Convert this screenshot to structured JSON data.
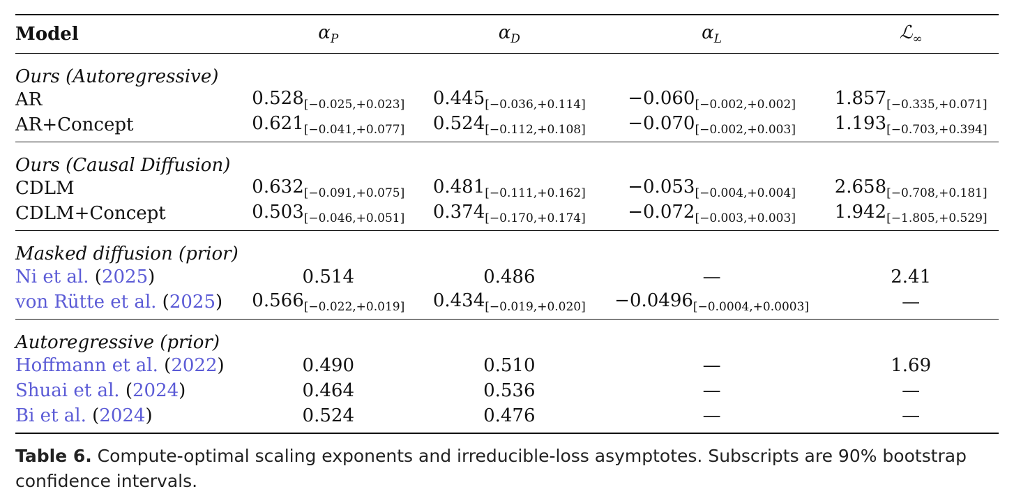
{
  "header": {
    "model": "Model",
    "cols": [
      {
        "base": "α",
        "sub": "P"
      },
      {
        "base": "α",
        "sub": "D"
      },
      {
        "base": "α",
        "sub": "L"
      },
      {
        "base": "ℒ",
        "sub": "∞"
      }
    ]
  },
  "groups": [
    {
      "title": "Ours (Autoregressive)",
      "rows": [
        {
          "name": "AR",
          "cells": [
            {
              "v": "0.528",
              "ci": "[−0.025,+0.023]"
            },
            {
              "v": "0.445",
              "ci": "[−0.036,+0.114]"
            },
            {
              "v": "−0.060",
              "ci": "[−0.002,+0.002]"
            },
            {
              "v": "1.857",
              "ci": "[−0.335,+0.071]"
            }
          ]
        },
        {
          "name": "AR+Concept",
          "cells": [
            {
              "v": "0.621",
              "ci": "[−0.041,+0.077]"
            },
            {
              "v": "0.524",
              "ci": "[−0.112,+0.108]"
            },
            {
              "v": "−0.070",
              "ci": "[−0.002,+0.003]"
            },
            {
              "v": "1.193",
              "ci": "[−0.703,+0.394]"
            }
          ]
        }
      ]
    },
    {
      "title": "Ours (Causal Diffusion)",
      "rows": [
        {
          "name": "CDLM",
          "cells": [
            {
              "v": "0.632",
              "ci": "[−0.091,+0.075]"
            },
            {
              "v": "0.481",
              "ci": "[−0.111,+0.162]"
            },
            {
              "v": "−0.053",
              "ci": "[−0.004,+0.004]"
            },
            {
              "v": "2.658",
              "ci": "[−0.708,+0.181]"
            }
          ]
        },
        {
          "name": "CDLM+Concept",
          "cells": [
            {
              "v": "0.503",
              "ci": "[−0.046,+0.051]"
            },
            {
              "v": "0.374",
              "ci": "[−0.170,+0.174]"
            },
            {
              "v": "−0.072",
              "ci": "[−0.003,+0.003]"
            },
            {
              "v": "1.942",
              "ci": "[−1.805,+0.529]"
            }
          ]
        }
      ]
    },
    {
      "title": "Masked diffusion (prior)",
      "rows": [
        {
          "name": "Ni et al.",
          "year": "2025",
          "cells": [
            {
              "v": "0.514",
              "ci": ""
            },
            {
              "v": "0.486",
              "ci": ""
            },
            {
              "v": "—",
              "ci": ""
            },
            {
              "v": "2.41",
              "ci": ""
            }
          ]
        },
        {
          "name": "von Rütte et al.",
          "year": "2025",
          "cells": [
            {
              "v": "0.566",
              "ci": "[−0.022,+0.019]"
            },
            {
              "v": "0.434",
              "ci": "[−0.019,+0.020]"
            },
            {
              "v": "−0.0496",
              "ci": "[−0.0004,+0.0003]"
            },
            {
              "v": "—",
              "ci": ""
            }
          ]
        }
      ]
    },
    {
      "title": "Autoregressive (prior)",
      "rows": [
        {
          "name": "Hoffmann et al.",
          "year": "2022",
          "cells": [
            {
              "v": "0.490",
              "ci": ""
            },
            {
              "v": "0.510",
              "ci": ""
            },
            {
              "v": "—",
              "ci": ""
            },
            {
              "v": "1.69",
              "ci": ""
            }
          ]
        },
        {
          "name": "Shuai et al.",
          "year": "2024",
          "cells": [
            {
              "v": "0.464",
              "ci": ""
            },
            {
              "v": "0.536",
              "ci": ""
            },
            {
              "v": "—",
              "ci": ""
            },
            {
              "v": "—",
              "ci": ""
            }
          ]
        },
        {
          "name": "Bi et al.",
          "year": "2024",
          "cells": [
            {
              "v": "0.524",
              "ci": ""
            },
            {
              "v": "0.476",
              "ci": ""
            },
            {
              "v": "—",
              "ci": ""
            },
            {
              "v": "—",
              "ci": ""
            }
          ]
        }
      ]
    }
  ],
  "caption": {
    "label": "Table 6.",
    "text": "Compute-optimal scaling exponents and irreducible-loss asymptotes. Subscripts are 90% bootstrap confidence intervals."
  },
  "colors": {
    "citation": "#5b5bd6",
    "text": "#111111"
  }
}
